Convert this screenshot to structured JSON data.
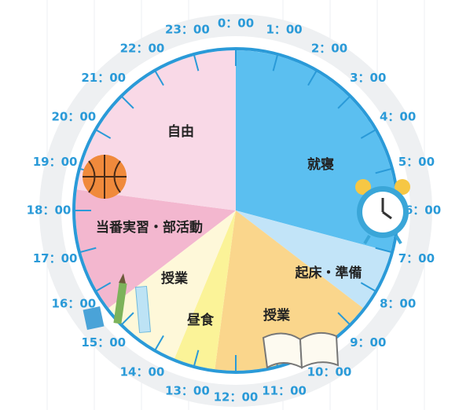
{
  "chart_data": {
    "type": "pie",
    "categories": [
      "就寝",
      "起床・準備",
      "授業",
      "昼食",
      "授業",
      "当番実習・部活動",
      "自由"
    ],
    "values": [
      7,
      1.5,
      4,
      1,
      2,
      3,
      5.5
    ],
    "colors": [
      "#5bbff0",
      "#c2e4f8",
      "#fad68c",
      "#fbf398",
      "#fef8d9",
      "#f3b7cf",
      "#f9d9e7"
    ],
    "clock_labels": [
      "0：00",
      "1：00",
      "2：00",
      "3：00",
      "4：00",
      "5：00",
      "6：00",
      "7：00",
      "8：00",
      "9：00",
      "10：00",
      "11：00",
      "12：00",
      "13：00",
      "14：00",
      "15：00",
      "16：00",
      "17：00",
      "18：00",
      "19：00",
      "20：00",
      "21：00",
      "22：00",
      "23：00"
    ]
  }
}
